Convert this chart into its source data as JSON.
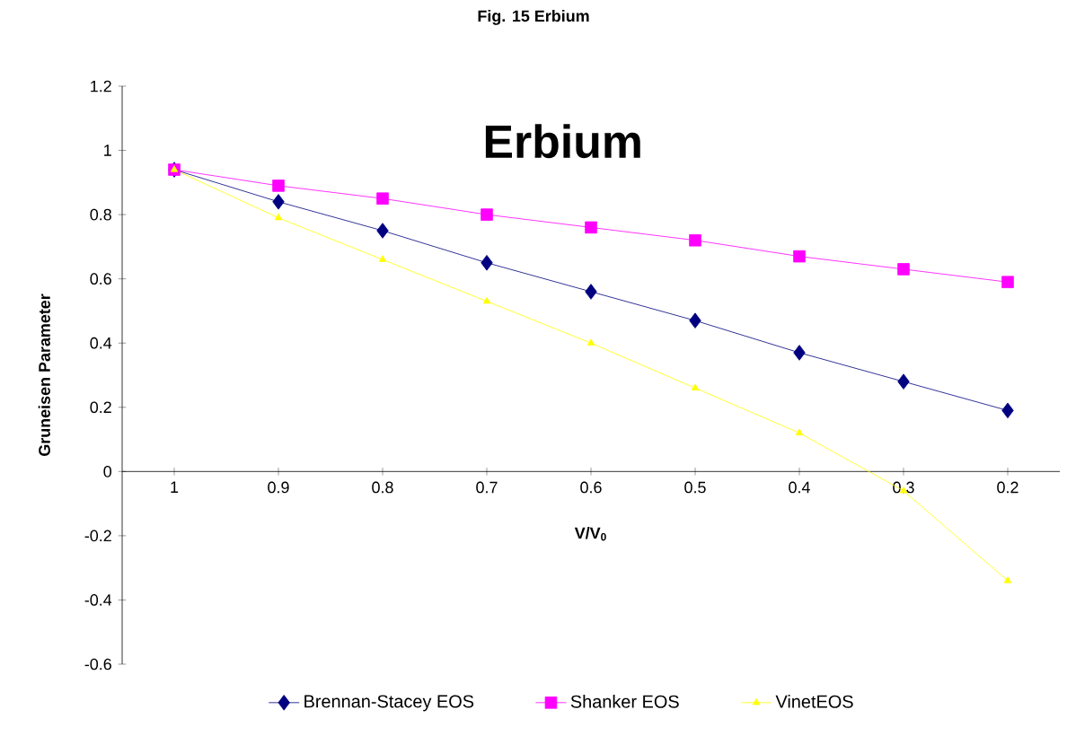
{
  "chart_data": {
    "type": "line",
    "title": "Fig. 15 Erbium",
    "annotations": [
      "Erbium"
    ],
    "xlabel": "V/V$_{0}$",
    "ylabel": "Gruneisen Parameter",
    "categories": [
      "1",
      "0.9",
      "0.8",
      "0.7",
      "0.6",
      "0.5",
      "0.4",
      "0.3",
      "0.2"
    ],
    "series": [
      {
        "name": "Brennan-Stacey EOS",
        "color": "#000080",
        "marker": "diamond",
        "values": [
          0.94,
          0.84,
          0.75,
          0.65,
          0.56,
          0.47,
          0.37,
          0.28,
          0.19
        ]
      },
      {
        "name": "Shanker EOS",
        "color": "#ff00ff",
        "marker": "square",
        "values": [
          0.94,
          0.89,
          0.85,
          0.8,
          0.76,
          0.72,
          0.67,
          0.63,
          0.59
        ]
      },
      {
        "name": "VinetEOS",
        "color": "#ffff00",
        "marker": "triangle",
        "values": [
          0.94,
          0.79,
          0.66,
          0.53,
          0.4,
          0.26,
          0.12,
          -0.06,
          -0.34
        ]
      }
    ],
    "ylim": [
      -0.6,
      1.2
    ],
    "yticks": [
      -0.6,
      -0.4,
      -0.2,
      0,
      0.2,
      0.4,
      0.6,
      0.8,
      1,
      1.2
    ],
    "grid": false,
    "legend": "bottom"
  }
}
